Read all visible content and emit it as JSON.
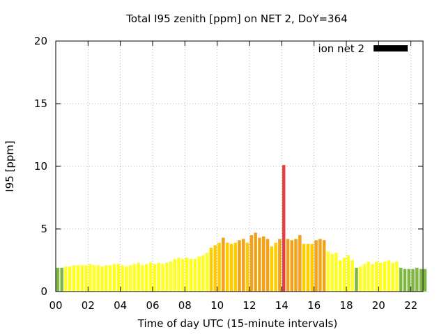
{
  "chart_data": {
    "type": "bar",
    "title": "Total I95 zenith [ppm] on NET 2, DoY=364",
    "xlabel": "Time of day UTC (15-minute intervals)",
    "ylabel": "I95 [ppm]",
    "xlim": [
      0,
      22.75
    ],
    "ylim": [
      0,
      20
    ],
    "grid": true,
    "interval_hours": 0.25,
    "x_ticks": [
      {
        "value": 0,
        "label": "00"
      },
      {
        "value": 2,
        "label": "02"
      },
      {
        "value": 4,
        "label": "04"
      },
      {
        "value": 6,
        "label": "06"
      },
      {
        "value": 8,
        "label": "08"
      },
      {
        "value": 10,
        "label": "10"
      },
      {
        "value": 12,
        "label": "12"
      },
      {
        "value": 14,
        "label": "14"
      },
      {
        "value": 16,
        "label": "16"
      },
      {
        "value": 18,
        "label": "18"
      },
      {
        "value": 20,
        "label": "20"
      },
      {
        "value": 22,
        "label": "22"
      }
    ],
    "y_ticks": [
      {
        "value": 0,
        "label": "0"
      },
      {
        "value": 5,
        "label": "5"
      },
      {
        "value": 10,
        "label": "10"
      },
      {
        "value": 15,
        "label": "15"
      },
      {
        "value": 20,
        "label": "20"
      }
    ],
    "legend": {
      "label": "ion net 2",
      "color": "#000000",
      "position": "top-right"
    },
    "colors": {
      "green": "#7fb742",
      "yellow": "#ffff22",
      "gold": "#ffcc00",
      "orange": "#f2a11a",
      "red": "#e64040"
    },
    "series": [
      {
        "name": "ion net 2",
        "values": [
          1.9,
          1.9,
          2.0,
          2.0,
          2.1,
          2.1,
          2.1,
          2.1,
          2.2,
          2.1,
          2.1,
          2.0,
          2.1,
          2.1,
          2.2,
          2.2,
          2.1,
          2.0,
          2.1,
          2.2,
          2.3,
          2.1,
          2.2,
          2.3,
          2.2,
          2.3,
          2.2,
          2.3,
          2.4,
          2.6,
          2.7,
          2.6,
          2.7,
          2.6,
          2.6,
          2.8,
          2.9,
          3.1,
          3.5,
          3.7,
          3.9,
          4.3,
          3.9,
          3.8,
          3.9,
          4.1,
          4.2,
          3.9,
          4.5,
          4.7,
          4.3,
          4.4,
          4.2,
          3.6,
          3.9,
          4.2,
          10.1,
          4.2,
          4.1,
          4.2,
          4.5,
          3.8,
          3.8,
          3.8,
          4.1,
          4.2,
          4.1,
          3.2,
          3.0,
          3.1,
          2.5,
          2.7,
          2.9,
          2.5,
          1.9,
          2.0,
          2.2,
          2.4,
          2.2,
          2.4,
          2.3,
          2.4,
          2.5,
          2.3,
          2.4,
          1.9,
          1.8,
          1.8,
          1.8,
          1.9,
          1.8,
          1.8
        ],
        "colors": [
          "green",
          "green",
          "yellow",
          "yellow",
          "yellow",
          "yellow",
          "yellow",
          "yellow",
          "yellow",
          "yellow",
          "yellow",
          "yellow",
          "yellow",
          "yellow",
          "yellow",
          "yellow",
          "yellow",
          "yellow",
          "yellow",
          "yellow",
          "yellow",
          "yellow",
          "yellow",
          "yellow",
          "yellow",
          "yellow",
          "yellow",
          "yellow",
          "yellow",
          "yellow",
          "yellow",
          "yellow",
          "yellow",
          "yellow",
          "yellow",
          "yellow",
          "yellow",
          "yellow",
          "gold",
          "gold",
          "gold",
          "orange",
          "gold",
          "gold",
          "gold",
          "orange",
          "orange",
          "gold",
          "orange",
          "orange",
          "orange",
          "orange",
          "orange",
          "gold",
          "gold",
          "orange",
          "red",
          "orange",
          "orange",
          "orange",
          "orange",
          "gold",
          "gold",
          "gold",
          "orange",
          "orange",
          "orange",
          "yellow",
          "yellow",
          "yellow",
          "yellow",
          "yellow",
          "yellow",
          "yellow",
          "green",
          "yellow",
          "yellow",
          "yellow",
          "yellow",
          "yellow",
          "yellow",
          "yellow",
          "yellow",
          "yellow",
          "yellow",
          "green",
          "green",
          "green",
          "green",
          "green",
          "green",
          "green"
        ]
      }
    ]
  }
}
